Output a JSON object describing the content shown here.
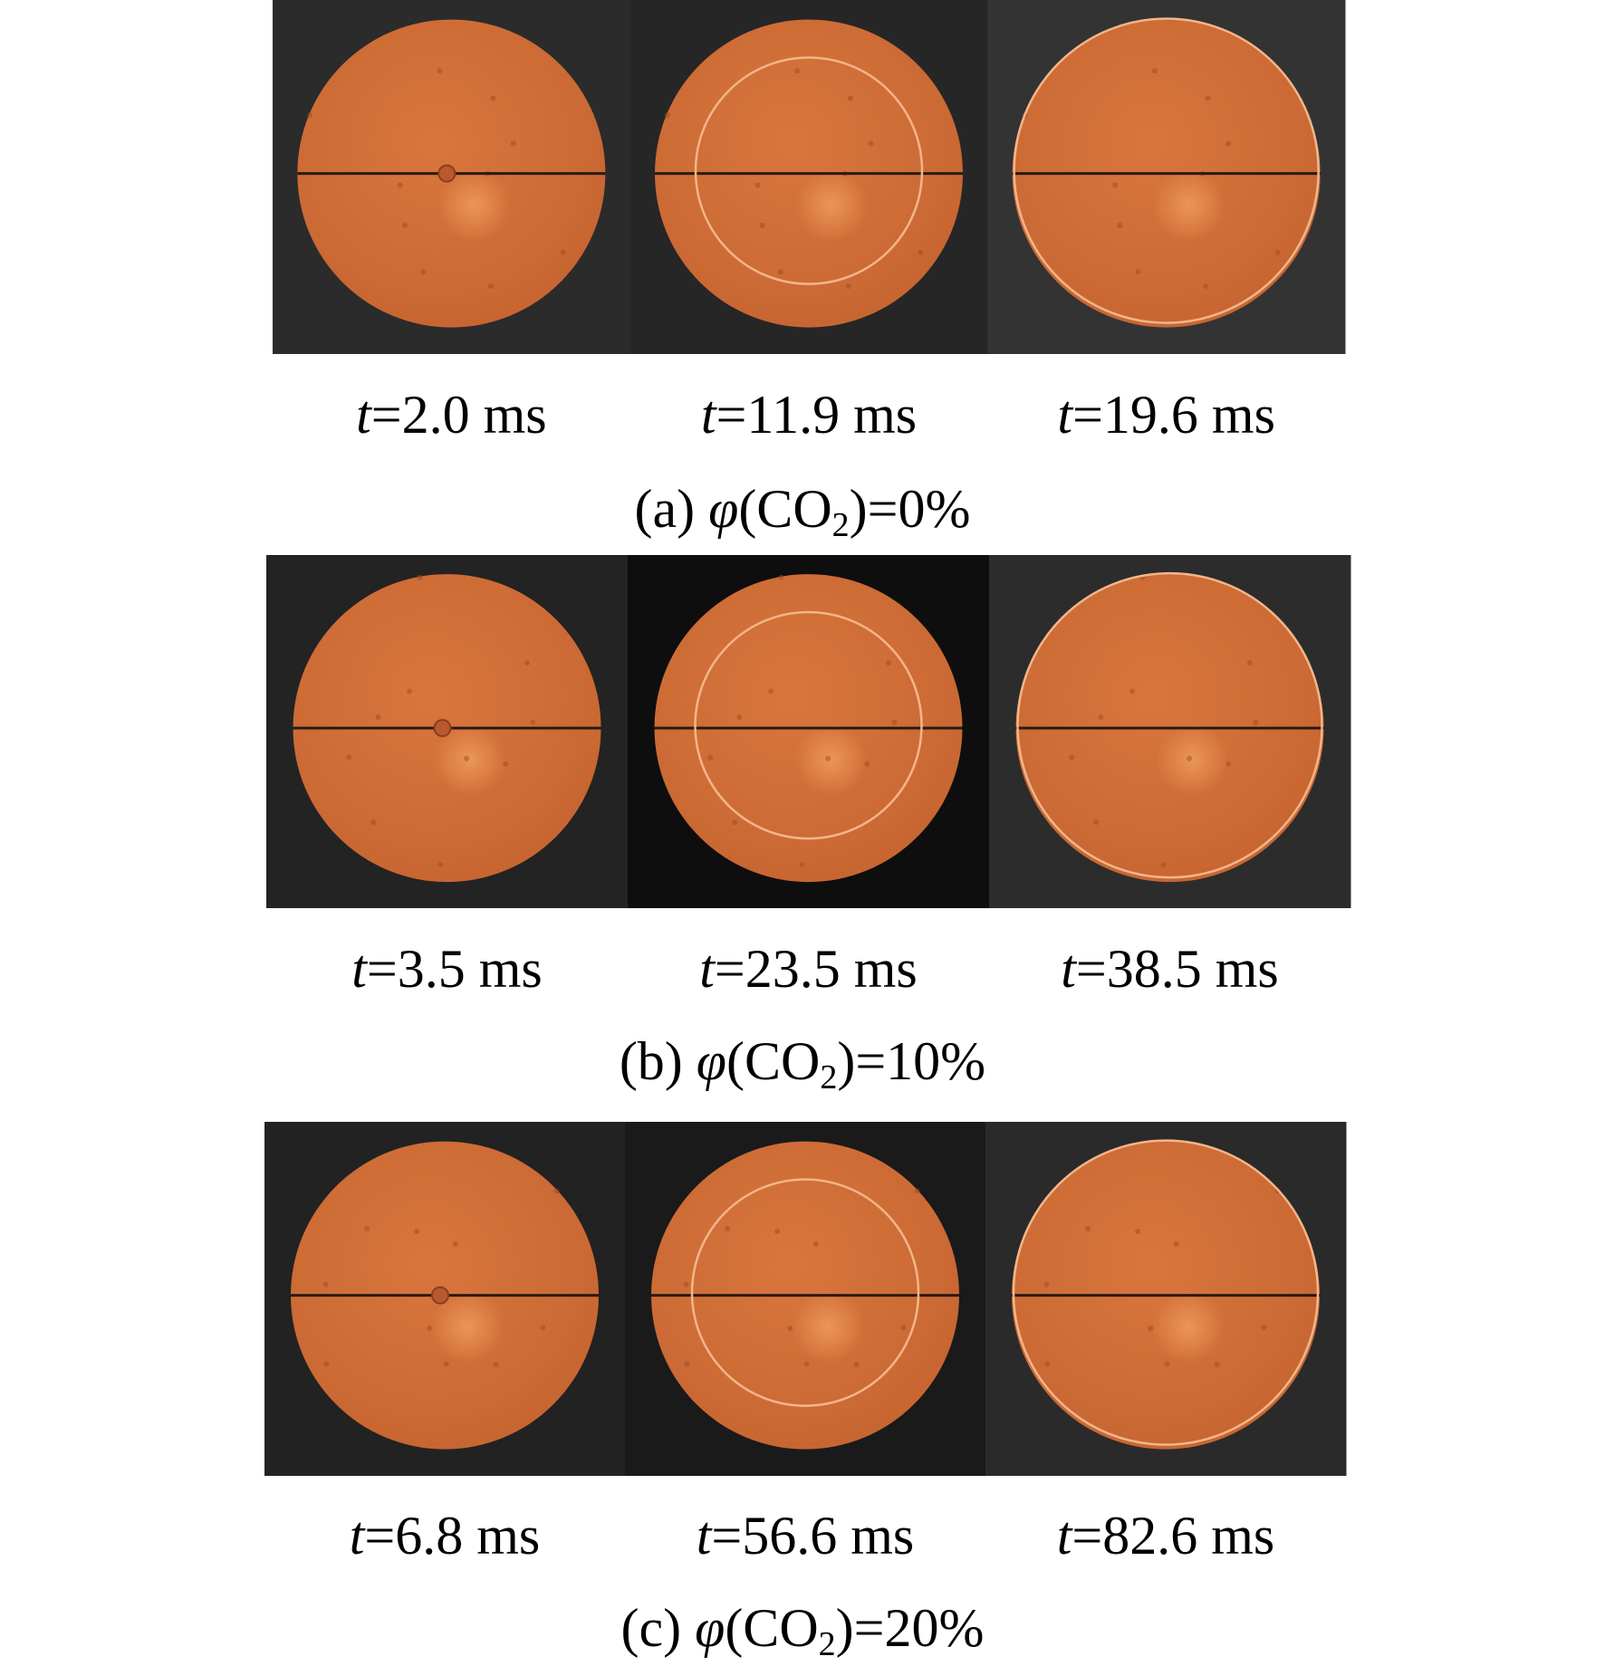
{
  "groups": [
    {
      "times": [
        "t=2.0 ms",
        "t=11.9 ms",
        "t=19.6 ms"
      ],
      "caption": {
        "label": "(a)",
        "variable": "φ",
        "species": "(CO",
        "subscript": "2",
        "value": ")=0%"
      }
    },
    {
      "times": [
        "t=3.5 ms",
        "t=23.5 ms",
        "t=38.5 ms"
      ],
      "caption": {
        "label": "(b)",
        "variable": "φ",
        "species": "(CO",
        "subscript": "2",
        "value": ")=10%"
      }
    },
    {
      "times": [
        "t=6.8 ms",
        "t=56.6 ms",
        "t=82.6 ms"
      ],
      "caption": {
        "label": "(c)",
        "variable": "φ",
        "species": "(CO",
        "subscript": "2",
        "value": ")=20%"
      }
    }
  ]
}
